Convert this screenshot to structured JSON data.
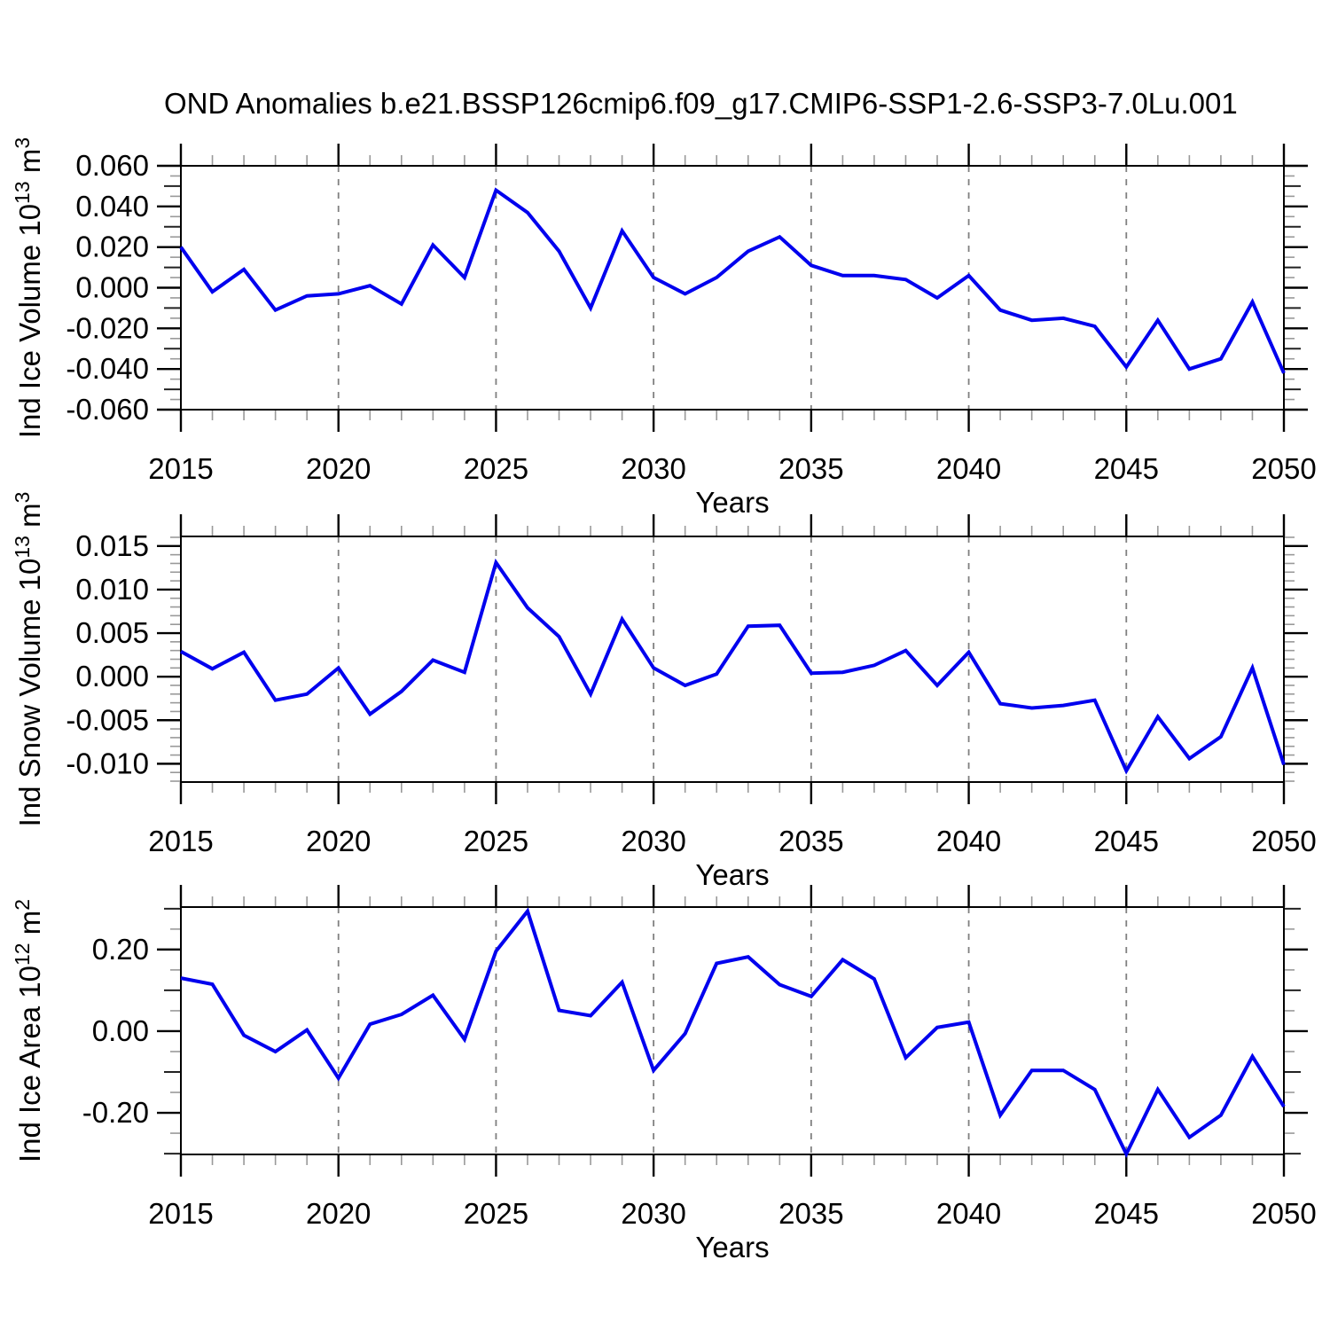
{
  "title": "OND Anomalies b.e21.BSSP126cmip6.f09_g17.CMIP6-SSP1-2.6-SSP3-7.0Lu.001",
  "line_color": "#0000EE",
  "background_color": "#ffffff",
  "x_axis": {
    "label": "Years",
    "tick_labels": [
      "2015",
      "2020",
      "2025",
      "2030",
      "2035",
      "2040",
      "2045",
      "2050"
    ],
    "tick_years": [
      2015,
      2020,
      2025,
      2030,
      2035,
      2040,
      2045,
      2050
    ],
    "grid_years": [
      2020,
      2025,
      2030,
      2035,
      2040,
      2045
    ],
    "minor_step_years": 1,
    "range": [
      2015,
      2050
    ]
  },
  "chart_data": {
    "type": "line",
    "title": "OND Anomalies b.e21.BSSP126cmip6.f09_g17.CMIP6-SSP1-2.6-SSP3-7.0Lu.001",
    "xlabel": "Years",
    "grid": "vertical-dashed-at-5yr",
    "legend": "none",
    "x": [
      2015,
      2016,
      2017,
      2018,
      2019,
      2020,
      2021,
      2022,
      2023,
      2024,
      2025,
      2026,
      2027,
      2028,
      2029,
      2030,
      2031,
      2032,
      2033,
      2034,
      2035,
      2036,
      2037,
      2038,
      2039,
      2040,
      2041,
      2042,
      2043,
      2044,
      2045,
      2046,
      2047,
      2048,
      2049,
      2050
    ],
    "series": [
      {
        "id": "ind-ice-volume",
        "name": "Ind Ice Volume 10^13 m^3",
        "ylabel_parts": [
          {
            "t": "Ind Ice Volume 10"
          },
          {
            "t": "13",
            "sup": true
          },
          {
            "t": " m"
          },
          {
            "t": "3",
            "sup": true
          }
        ],
        "ylim": [
          -0.06,
          0.06
        ],
        "ytick_values": [
          0.06,
          0.04,
          0.02,
          0.0,
          -0.02,
          -0.04,
          -0.06
        ],
        "ytick_labels": [
          "0.060",
          "0.040",
          "0.020",
          "0.000",
          "-0.020",
          "-0.040",
          "-0.060"
        ],
        "y_major_step": 0.02,
        "y_mid_step": 0.01,
        "y_minor_step": 0.005,
        "values": [
          0.02,
          -0.002,
          0.009,
          -0.011,
          -0.004,
          -0.003,
          0.001,
          -0.008,
          0.021,
          0.005,
          0.048,
          0.037,
          0.018,
          -0.01,
          0.028,
          0.005,
          -0.003,
          0.005,
          0.018,
          0.025,
          0.011,
          0.006,
          0.006,
          0.004,
          -0.005,
          0.006,
          -0.011,
          -0.016,
          -0.015,
          -0.019,
          -0.039,
          -0.016,
          -0.04,
          -0.035,
          -0.007,
          -0.042
        ]
      },
      {
        "id": "ind-snow-volume",
        "name": "Ind Snow Volume 10^13 m^3",
        "ylabel_parts": [
          {
            "t": "Ind Snow Volume 10"
          },
          {
            "t": "13",
            "sup": true
          },
          {
            "t": " m"
          },
          {
            "t": "3",
            "sup": true
          }
        ],
        "ylim": [
          -0.0121,
          0.0161
        ],
        "ytick_values": [
          0.015,
          0.01,
          0.005,
          0.0,
          -0.005,
          -0.01
        ],
        "ytick_labels": [
          "0.015",
          "0.010",
          "0.005",
          "0.000",
          "-0.005",
          "-0.010"
        ],
        "y_major_step": 0.005,
        "y_mid_step": null,
        "y_minor_step": 0.001,
        "values": [
          0.0029,
          0.0009,
          0.0028,
          -0.0027,
          -0.002,
          0.001,
          -0.0043,
          -0.0017,
          0.0019,
          0.0005,
          0.0131,
          0.0079,
          0.0046,
          -0.002,
          0.0066,
          0.001,
          -0.001,
          0.0003,
          0.0058,
          0.0059,
          0.0004,
          0.0005,
          0.0013,
          0.003,
          -0.001,
          0.0028,
          -0.0031,
          -0.0036,
          -0.0033,
          -0.0027,
          -0.0108,
          -0.0046,
          -0.0094,
          -0.0069,
          0.001,
          -0.0101
        ]
      },
      {
        "id": "ind-ice-area",
        "name": "Ind Ice Area 10^12 m^2",
        "ylabel_parts": [
          {
            "t": "Ind Ice Area 10"
          },
          {
            "t": "12",
            "sup": true
          },
          {
            "t": " m"
          },
          {
            "t": "2",
            "sup": true
          }
        ],
        "ylim": [
          -0.302,
          0.304
        ],
        "ytick_values": [
          0.2,
          0.0,
          -0.2
        ],
        "ytick_labels": [
          "0.20",
          "0.00",
          "-0.20"
        ],
        "y_major_step": 0.2,
        "y_mid_step": 0.1,
        "y_minor_step": 0.05,
        "values": [
          0.13,
          0.115,
          -0.01,
          -0.05,
          0.003,
          -0.115,
          0.017,
          0.041,
          0.088,
          -0.02,
          0.196,
          0.294,
          0.051,
          0.038,
          0.12,
          -0.096,
          -0.006,
          0.166,
          0.182,
          0.114,
          0.085,
          0.175,
          0.128,
          -0.065,
          0.009,
          0.022,
          -0.206,
          -0.096,
          -0.096,
          -0.143,
          -0.301,
          -0.143,
          -0.26,
          -0.206,
          -0.062,
          -0.185
        ]
      }
    ]
  }
}
